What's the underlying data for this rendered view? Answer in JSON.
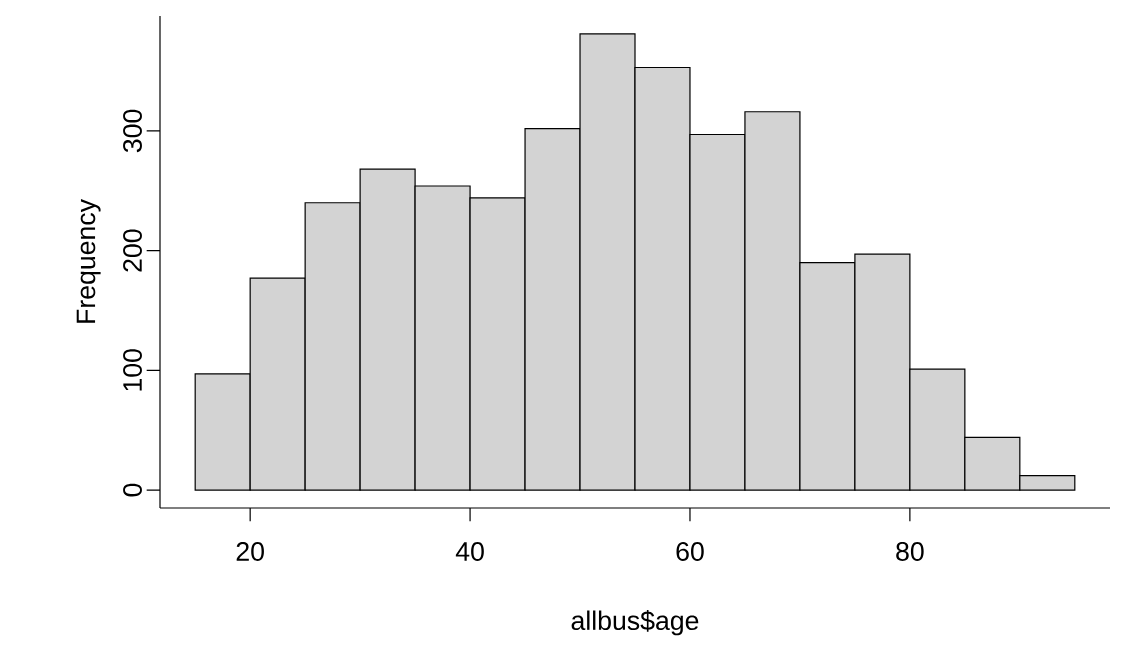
{
  "chart_data": {
    "type": "histogram",
    "xlabel": "allbus$age",
    "ylabel": "Frequency",
    "bins": [
      15,
      20,
      25,
      30,
      35,
      40,
      45,
      50,
      55,
      60,
      65,
      70,
      75,
      80,
      85,
      90,
      95
    ],
    "values": [
      97,
      177,
      240,
      268,
      254,
      244,
      302,
      381,
      353,
      297,
      316,
      190,
      197,
      101,
      44,
      12
    ],
    "color": "#d3d3d3",
    "xlim": [
      11.8,
      98.2
    ],
    "ylim": [
      -15,
      396
    ],
    "xticks": [
      20,
      40,
      60,
      80
    ],
    "yticks": [
      0,
      100,
      200,
      300
    ]
  }
}
